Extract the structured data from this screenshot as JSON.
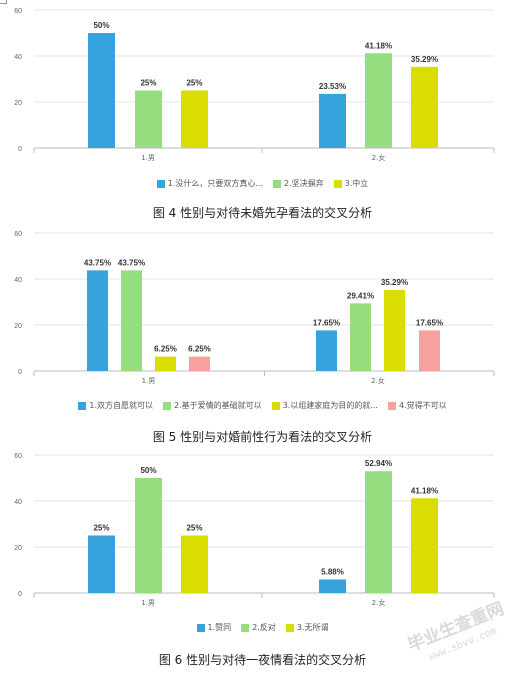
{
  "chart_data": [
    {
      "type": "bar",
      "categories": [
        "1.男",
        "2.女"
      ],
      "series": [
        {
          "name": "1.没什么，只要双方真心...",
          "color": "#36a3dc",
          "values": [
            50,
            23.53
          ],
          "labels": [
            "50%",
            "23.53%"
          ]
        },
        {
          "name": "2.坚决摒弃",
          "color": "#95dd7e",
          "values": [
            25,
            41.18
          ],
          "labels": [
            "25%",
            "41.18%"
          ]
        },
        {
          "name": "3.中立",
          "color": "#d9dd00",
          "values": [
            25,
            35.29
          ],
          "labels": [
            "25%",
            "35.29%"
          ]
        }
      ],
      "yticks": [
        0,
        20,
        40,
        60
      ],
      "ylim": [
        0,
        60
      ],
      "legend_position": "bottom",
      "caption": "图 4 性别与对待未婚先孕看法的交叉分析"
    },
    {
      "type": "bar",
      "categories": [
        "1.男",
        "2.女"
      ],
      "series": [
        {
          "name": "1.双方自愿就可以",
          "color": "#36a3dc",
          "values": [
            43.75,
            17.65
          ],
          "labels": [
            "43.75%",
            "17.65%"
          ]
        },
        {
          "name": "2.基于爱情的基础就可以",
          "color": "#95dd7e",
          "values": [
            43.75,
            29.41
          ],
          "labels": [
            "43.75%",
            "29.41%"
          ]
        },
        {
          "name": "3.以组建家庭为目的的就...",
          "color": "#d9dd00",
          "values": [
            6.25,
            35.29
          ],
          "labels": [
            "6.25%",
            "35.29%"
          ]
        },
        {
          "name": "4.觉得不可以",
          "color": "#f6a0a0",
          "values": [
            6.25,
            17.65
          ],
          "labels": [
            "6.25%",
            "17.65%"
          ]
        }
      ],
      "yticks": [
        0,
        20,
        40,
        60
      ],
      "ylim": [
        0,
        60
      ],
      "legend_position": "bottom",
      "caption": "图 5 性别与对婚前性行为看法的交叉分析"
    },
    {
      "type": "bar",
      "categories": [
        "1.男",
        "2.女"
      ],
      "series": [
        {
          "name": "1.赞同",
          "color": "#36a3dc",
          "values": [
            25,
            5.88
          ],
          "labels": [
            "25%",
            "5.88%"
          ]
        },
        {
          "name": "2.反对",
          "color": "#95dd7e",
          "values": [
            50,
            52.94
          ],
          "labels": [
            "50%",
            "52.94%"
          ]
        },
        {
          "name": "3.无所谓",
          "color": "#d9dd00",
          "values": [
            25,
            41.18
          ],
          "labels": [
            "25%",
            "41.18%"
          ]
        }
      ],
      "yticks": [
        0,
        20,
        40,
        60
      ],
      "ylim": [
        0,
        60
      ],
      "legend_position": "bottom",
      "caption": "图 6 性别与对待一夜情看法的交叉分析"
    }
  ],
  "watermark": {
    "line1": "毕业生查重网",
    "line2": "www.sbvv.com"
  }
}
